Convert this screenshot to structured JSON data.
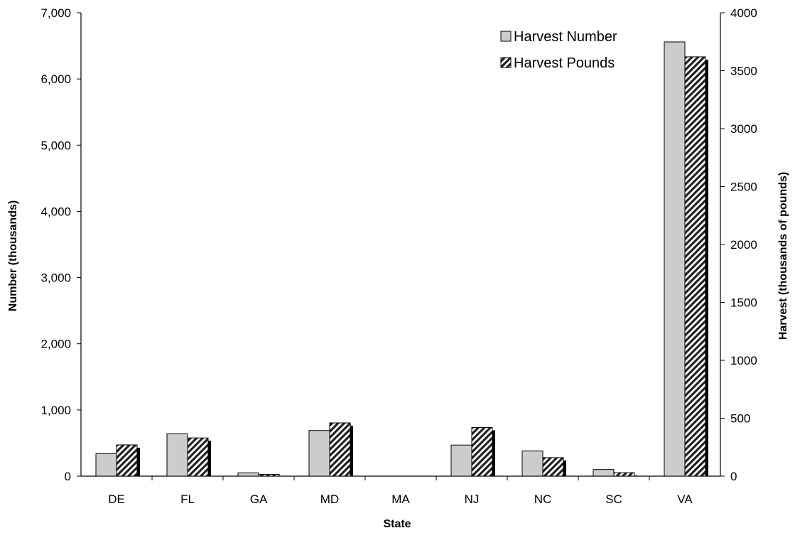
{
  "chart_data": {
    "type": "bar",
    "xlabel": "State",
    "ylabel": "Number (thousands)",
    "y2label": "Harvest (thousands  of pounds)",
    "categories": [
      "DE",
      "FL",
      "GA",
      "MD",
      "MA",
      "NJ",
      "NC",
      "SC",
      "VA"
    ],
    "ylim": [
      0,
      7000
    ],
    "y2lim": [
      0,
      4000
    ],
    "yticks": [
      "0",
      "1,000",
      "2,000",
      "3,000",
      "4,000",
      "5,000",
      "6,000",
      "7,000"
    ],
    "y2ticks": [
      "0",
      "500",
      "1000",
      "1500",
      "2000",
      "2500",
      "3000",
      "3500",
      "4000"
    ],
    "series": [
      {
        "name": "Harvest Number",
        "axis": "left",
        "values": [
          340,
          640,
          50,
          690,
          0,
          470,
          380,
          100,
          6560
        ]
      },
      {
        "name": "Harvest Pounds",
        "axis": "right",
        "values": [
          270,
          330,
          15,
          460,
          0,
          420,
          160,
          30,
          3620
        ]
      }
    ],
    "legend_position": "top-right",
    "grid": false,
    "colors": {
      "harvest_number": "#cccccc",
      "harvest_pounds_hatch": "#222222",
      "bar_border": "#000000"
    }
  }
}
